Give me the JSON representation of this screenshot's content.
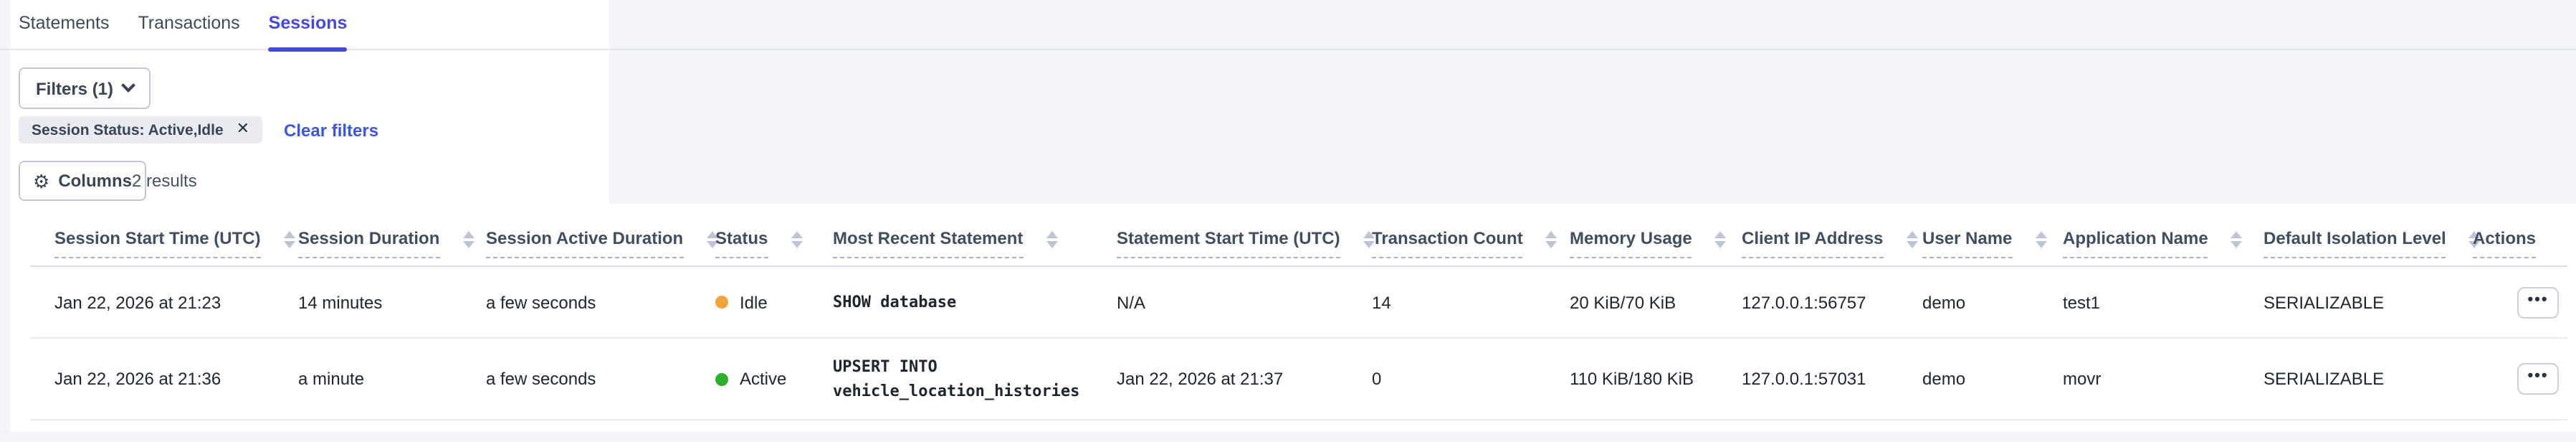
{
  "tabs": [
    {
      "label": "Statements",
      "active": false
    },
    {
      "label": "Transactions",
      "active": false
    },
    {
      "label": "Sessions",
      "active": true
    }
  ],
  "filters": {
    "button_label": "Filters (1)",
    "chip_label": "Session Status: Active,Idle",
    "clear_label": "Clear filters"
  },
  "toolbar": {
    "columns_label": "Columns",
    "results_label": "2 results"
  },
  "table": {
    "columns": [
      {
        "label": "Session Start Time (UTC)",
        "sortable": true
      },
      {
        "label": "Session Duration",
        "sortable": true
      },
      {
        "label": "Session Active Duration",
        "sortable": true
      },
      {
        "label": "Status",
        "sortable": true
      },
      {
        "label": "Most Recent Statement",
        "sortable": true
      },
      {
        "label": "Statement Start Time (UTC)",
        "sortable": true
      },
      {
        "label": "Transaction Count",
        "sortable": true
      },
      {
        "label": "Memory Usage",
        "sortable": true
      },
      {
        "label": "Client IP Address",
        "sortable": true
      },
      {
        "label": "User Name",
        "sortable": true
      },
      {
        "label": "Application Name",
        "sortable": true
      },
      {
        "label": "Default Isolation Level",
        "sortable": true
      },
      {
        "label": "Actions",
        "sortable": false
      }
    ],
    "rows": [
      {
        "session_start": "Jan 22, 2026 at 21:23",
        "session_duration": "14 minutes",
        "session_active_duration": "a few seconds",
        "status": "Idle",
        "status_color": "#f2a33c",
        "most_recent_statement": "SHOW database",
        "statement_start": "N/A",
        "transaction_count": "14",
        "memory_usage": "20 KiB/70 KiB",
        "client_ip": "127.0.0.1:56757",
        "user_name": "demo",
        "application_name": "test1",
        "isolation_level": "SERIALIZABLE"
      },
      {
        "session_start": "Jan 22, 2026 at 21:36",
        "session_duration": "a minute",
        "session_active_duration": "a few seconds",
        "status": "Active",
        "status_color": "#2eaf2e",
        "most_recent_statement": "UPSERT INTO vehicle_location_histories",
        "statement_start": "Jan 22, 2026 at 21:37",
        "transaction_count": "0",
        "memory_usage": "110 KiB/180 KiB",
        "client_ip": "127.0.0.1:57031",
        "user_name": "demo",
        "application_name": "movr",
        "isolation_level": "SERIALIZABLE"
      }
    ]
  },
  "icons": {
    "gear": "⚙",
    "close": "✕",
    "ellipsis": "•••"
  },
  "colors": {
    "accent_tab": "#4249e0",
    "link": "#3a56e0",
    "status_idle": "#f2a33c",
    "status_active": "#2eaf2e",
    "page_background": "#f4f5f9",
    "chip_background": "#e9ebf1"
  }
}
